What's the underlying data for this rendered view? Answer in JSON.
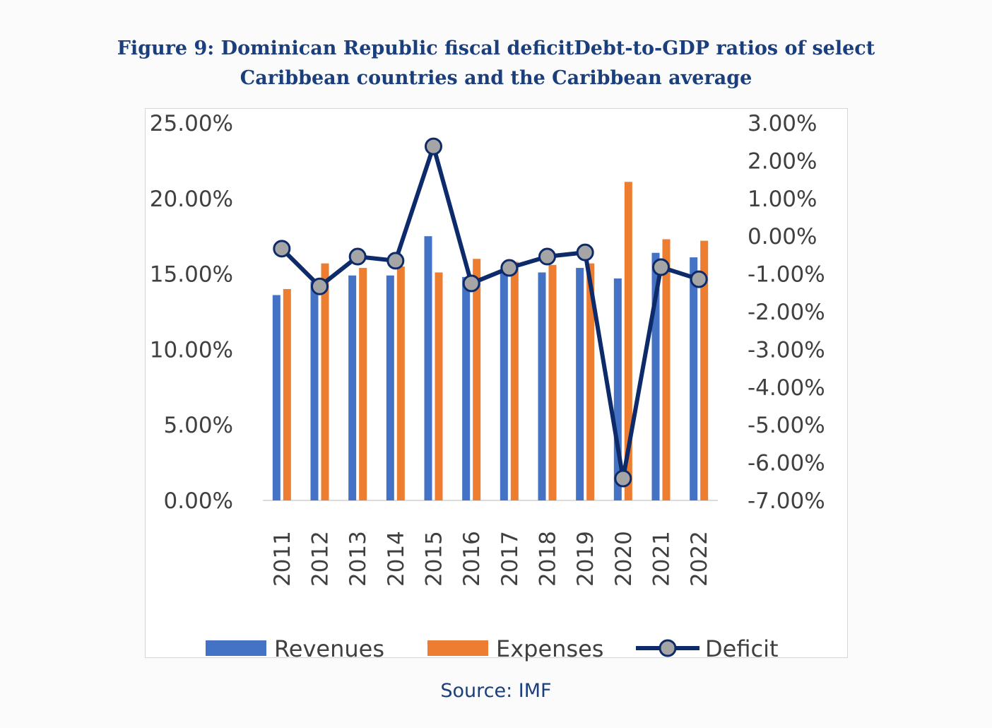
{
  "title_lines": [
    "Figure 9: Dominican Republic fiscal deficitDebt-to-GDP ratios of select",
    "Caribbean countries and the Caribbean average"
  ],
  "source": "Source: IMF",
  "chart_data": {
    "type": "bar+line",
    "categories": [
      "2011",
      "2012",
      "2013",
      "2014",
      "2015",
      "2016",
      "2017",
      "2018",
      "2019",
      "2020",
      "2021",
      "2022"
    ],
    "series": [
      {
        "name": "Revenues",
        "type": "bar",
        "axis": "left",
        "color": "#4472c4",
        "values": [
          13.6,
          14.5,
          14.9,
          14.9,
          17.5,
          14.8,
          15.1,
          15.1,
          15.4,
          14.7,
          16.4,
          16.1
        ]
      },
      {
        "name": "Expenses",
        "type": "bar",
        "axis": "left",
        "color": "#ed7d31",
        "values": [
          14.0,
          15.7,
          15.4,
          15.5,
          15.1,
          16.0,
          15.8,
          15.6,
          15.7,
          21.1,
          17.3,
          17.2
        ]
      },
      {
        "name": "Deficit",
        "type": "line",
        "axis": "right",
        "color": "#0d2a6b",
        "marker_color": "#a5a5a5",
        "values": [
          -0.33,
          -1.33,
          -0.54,
          -0.65,
          2.38,
          -1.25,
          -0.84,
          -0.54,
          -0.43,
          -6.42,
          -0.82,
          -1.14
        ]
      }
    ],
    "left_axis": {
      "ylim": [
        0,
        25
      ],
      "ticks": [
        "0.00%",
        "5.00%",
        "10.00%",
        "15.00%",
        "20.00%",
        "25.00%"
      ],
      "tick_values": [
        0,
        5,
        10,
        15,
        20,
        25
      ]
    },
    "right_axis": {
      "ylim": [
        -7,
        3
      ],
      "ticks": [
        "-7.00%",
        "-6.00%",
        "-5.00%",
        "-4.00%",
        "-3.00%",
        "-2.00%",
        "-1.00%",
        "0.00%",
        "1.00%",
        "2.00%",
        "3.00%"
      ],
      "tick_values": [
        -7,
        -6,
        -5,
        -4,
        -3,
        -2,
        -1,
        0,
        1,
        2,
        3
      ]
    },
    "grid": false,
    "legend_position": "bottom"
  }
}
